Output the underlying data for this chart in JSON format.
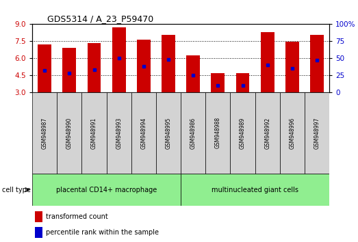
{
  "title": "GDS5314 / A_23_P59470",
  "samples": [
    "GSM948987",
    "GSM948990",
    "GSM948991",
    "GSM948993",
    "GSM948994",
    "GSM948995",
    "GSM948986",
    "GSM948988",
    "GSM948989",
    "GSM948992",
    "GSM948996",
    "GSM948997"
  ],
  "transformed_counts": [
    7.2,
    6.9,
    7.35,
    8.75,
    7.65,
    8.05,
    6.25,
    4.65,
    4.65,
    8.3,
    7.45,
    8.05
  ],
  "percentile_ranks": [
    32,
    28,
    33,
    50,
    38,
    48,
    25,
    10,
    10,
    40,
    35,
    47
  ],
  "bar_bottom": 3.0,
  "ylim_left": [
    3,
    9
  ],
  "ylim_right": [
    0,
    100
  ],
  "yticks_left": [
    3,
    4.5,
    6,
    7.5,
    9
  ],
  "yticks_right": [
    0,
    25,
    50,
    75,
    100
  ],
  "groups": [
    {
      "label": "placental CD14+ macrophage",
      "start": 0,
      "end": 6
    },
    {
      "label": "multinucleated giant cells",
      "start": 6,
      "end": 12
    }
  ],
  "bar_color": "#CC0000",
  "dot_color": "#0000CC",
  "tick_label_color_left": "#CC0000",
  "tick_label_color_right": "#0000CC",
  "bar_width": 0.55,
  "legend_labels": [
    "transformed count",
    "percentile rank within the sample"
  ],
  "legend_colors": [
    "#CC0000",
    "#0000CC"
  ],
  "cell_type_label": "cell type",
  "sample_bg_color": "#D3D3D3",
  "group_color": "#90EE90"
}
